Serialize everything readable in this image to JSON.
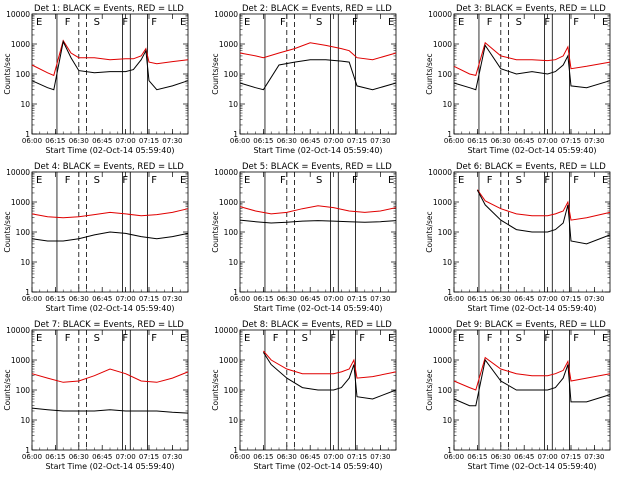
{
  "figure": {
    "xlabel": "Start Time (02-Oct-14 05:59:40)",
    "ylabel": "Counts/sec"
  },
  "chart_data": [
    {
      "type": "line",
      "title": "Det 1: BLACK = Events, RED = LLD",
      "flags": [
        "E",
        "F",
        "S",
        "F",
        "F",
        "E"
      ],
      "xlim": [
        "06:00",
        "07:40"
      ],
      "ylim": [
        1,
        10000
      ],
      "yscale": "log",
      "x_ticks": [
        "06:00",
        "06:15",
        "06:30",
        "06:45",
        "07:00",
        "07:15",
        "07:30"
      ],
      "y_ticks": [
        "1",
        "10",
        "100",
        "1000",
        "10000"
      ],
      "series": [
        {
          "color": "#000000",
          "x": [
            "06:00",
            "06:10",
            "06:14",
            "06:20",
            "06:25",
            "06:30",
            "06:40",
            "06:50",
            "07:00",
            "07:05",
            "07:10",
            "07:13",
            "07:15",
            "07:20",
            "07:30",
            "07:40"
          ],
          "values": [
            60,
            35,
            30,
            1200,
            350,
            130,
            110,
            120,
            120,
            140,
            300,
            600,
            60,
            30,
            40,
            60
          ]
        },
        {
          "color": "#e00000",
          "x": [
            "06:00",
            "06:10",
            "06:14",
            "06:20",
            "06:25",
            "06:30",
            "06:40",
            "06:50",
            "07:00",
            "07:05",
            "07:10",
            "07:13",
            "07:15",
            "07:20",
            "07:30",
            "07:40"
          ],
          "values": [
            200,
            110,
            90,
            1300,
            500,
            350,
            350,
            300,
            320,
            320,
            400,
            700,
            250,
            220,
            260,
            300
          ]
        }
      ]
    },
    {
      "type": "line",
      "title": "Det 2: BLACK = Events, RED = LLD",
      "flags": [
        "E",
        "F",
        "S",
        "F",
        "E"
      ],
      "xlim": [
        "06:00",
        "07:40"
      ],
      "ylim": [
        1,
        10000
      ],
      "yscale": "log",
      "x_ticks": [
        "06:00",
        "06:15",
        "06:30",
        "06:45",
        "07:00",
        "07:15",
        "07:30"
      ],
      "y_ticks": [
        "1",
        "10",
        "100",
        "1000",
        "10000"
      ],
      "series": [
        {
          "color": "#000000",
          "x": [
            "06:00",
            "06:10",
            "06:15",
            "06:25",
            "06:35",
            "06:45",
            "06:55",
            "07:05",
            "07:10",
            "07:15",
            "07:25",
            "07:40"
          ],
          "values": [
            50,
            35,
            30,
            200,
            250,
            300,
            300,
            270,
            250,
            40,
            30,
            50
          ]
        },
        {
          "color": "#e00000",
          "x": [
            "06:00",
            "06:10",
            "06:15",
            "06:25",
            "06:35",
            "06:45",
            "06:55",
            "07:05",
            "07:10",
            "07:15",
            "07:25",
            "07:40"
          ],
          "values": [
            500,
            400,
            350,
            500,
            700,
            1100,
            900,
            700,
            600,
            350,
            300,
            500
          ]
        }
      ]
    },
    {
      "type": "line",
      "title": "Det 3: BLACK = Events, RED = LLD",
      "flags": [
        "E",
        "F",
        "S",
        "F",
        "F",
        "E"
      ],
      "xlim": [
        "06:00",
        "07:40"
      ],
      "ylim": [
        1,
        10000
      ],
      "yscale": "log",
      "x_ticks": [
        "06:00",
        "06:15",
        "06:30",
        "06:45",
        "07:00",
        "07:15",
        "07:30"
      ],
      "y_ticks": [
        "1",
        "10",
        "100",
        "1000",
        "10000"
      ],
      "series": [
        {
          "color": "#000000",
          "x": [
            "06:00",
            "06:10",
            "06:14",
            "06:20",
            "06:30",
            "06:40",
            "06:50",
            "07:00",
            "07:05",
            "07:10",
            "07:13",
            "07:15",
            "07:25",
            "07:40"
          ],
          "values": [
            50,
            35,
            30,
            900,
            150,
            100,
            120,
            100,
            120,
            200,
            400,
            40,
            35,
            60
          ]
        },
        {
          "color": "#e00000",
          "x": [
            "06:00",
            "06:10",
            "06:14",
            "06:20",
            "06:30",
            "06:40",
            "06:50",
            "07:00",
            "07:05",
            "07:10",
            "07:13",
            "07:15",
            "07:25",
            "07:40"
          ],
          "values": [
            180,
            100,
            90,
            1100,
            400,
            300,
            300,
            280,
            300,
            400,
            800,
            150,
            180,
            250
          ]
        }
      ]
    },
    {
      "type": "line",
      "title": "Det 4: BLACK = Events, RED = LLD",
      "flags": [
        "E",
        "F",
        "S",
        "F",
        "F",
        "E"
      ],
      "xlim": [
        "06:00",
        "07:40"
      ],
      "ylim": [
        1,
        10000
      ],
      "yscale": "log",
      "x_ticks": [
        "06:00",
        "06:15",
        "06:30",
        "06:45",
        "07:00",
        "07:15",
        "07:30"
      ],
      "y_ticks": [
        "1",
        "10",
        "100",
        "1000",
        "10000"
      ],
      "series": [
        {
          "color": "#000000",
          "x": [
            "06:00",
            "06:10",
            "06:20",
            "06:30",
            "06:40",
            "06:50",
            "07:00",
            "07:10",
            "07:20",
            "07:30",
            "07:40"
          ],
          "values": [
            60,
            50,
            50,
            60,
            80,
            100,
            90,
            70,
            60,
            70,
            90
          ]
        },
        {
          "color": "#e00000",
          "x": [
            "06:00",
            "06:10",
            "06:20",
            "06:30",
            "06:40",
            "06:50",
            "07:00",
            "07:10",
            "07:20",
            "07:30",
            "07:40"
          ],
          "values": [
            400,
            320,
            300,
            320,
            380,
            450,
            400,
            350,
            380,
            450,
            600
          ]
        }
      ]
    },
    {
      "type": "line",
      "title": "Det 5: BLACK = Events, RED = LLD",
      "flags": [
        "E",
        "F",
        "S",
        "F",
        "E"
      ],
      "xlim": [
        "06:00",
        "07:40"
      ],
      "ylim": [
        1,
        10000
      ],
      "yscale": "log",
      "x_ticks": [
        "06:00",
        "06:15",
        "06:30",
        "06:45",
        "07:00",
        "07:15",
        "07:30"
      ],
      "y_ticks": [
        "1",
        "10",
        "100",
        "1000",
        "10000"
      ],
      "series": [
        {
          "color": "#000000",
          "x": [
            "06:00",
            "06:10",
            "06:20",
            "06:30",
            "06:40",
            "06:50",
            "07:00",
            "07:10",
            "07:20",
            "07:30",
            "07:40"
          ],
          "values": [
            250,
            220,
            200,
            210,
            230,
            240,
            230,
            220,
            210,
            220,
            240
          ]
        },
        {
          "color": "#e00000",
          "x": [
            "06:00",
            "06:10",
            "06:20",
            "06:30",
            "06:40",
            "06:50",
            "07:00",
            "07:10",
            "07:20",
            "07:30",
            "07:40"
          ],
          "values": [
            700,
            500,
            400,
            450,
            600,
            750,
            650,
            500,
            450,
            500,
            650
          ]
        }
      ]
    },
    {
      "type": "line",
      "title": "Det 6: BLACK = Events, RED = LLD",
      "flags": [
        "E",
        "F",
        "S",
        "F",
        "F",
        "E"
      ],
      "xlim": [
        "06:00",
        "07:40"
      ],
      "ylim": [
        1,
        10000
      ],
      "yscale": "log",
      "x_ticks": [
        "06:00",
        "06:15",
        "06:30",
        "06:45",
        "07:00",
        "07:15",
        "07:30"
      ],
      "y_ticks": [
        "1",
        "10",
        "100",
        "1000",
        "10000"
      ],
      "series": [
        {
          "color": "#000000",
          "x": [
            "06:15",
            "06:20",
            "06:30",
            "06:40",
            "06:50",
            "07:00",
            "07:05",
            "07:10",
            "07:13",
            "07:15",
            "07:25",
            "07:40"
          ],
          "values": [
            2500,
            800,
            250,
            120,
            100,
            100,
            120,
            200,
            800,
            50,
            40,
            80
          ]
        },
        {
          "color": "#e00000",
          "x": [
            "06:15",
            "06:20",
            "06:30",
            "06:40",
            "06:50",
            "07:00",
            "07:05",
            "07:10",
            "07:13",
            "07:15",
            "07:25",
            "07:40"
          ],
          "values": [
            2600,
            1100,
            600,
            400,
            350,
            350,
            400,
            500,
            1000,
            250,
            300,
            450
          ]
        }
      ]
    },
    {
      "type": "line",
      "title": "Det 7: BLACK = Events, RED = LLD",
      "flags": [
        "E",
        "F",
        "S",
        "F",
        "F",
        "E"
      ],
      "xlim": [
        "06:00",
        "07:40"
      ],
      "ylim": [
        1,
        10000
      ],
      "yscale": "log",
      "x_ticks": [
        "06:00",
        "06:15",
        "06:30",
        "06:45",
        "07:00",
        "07:15",
        "07:30"
      ],
      "y_ticks": [
        "1",
        "10",
        "100",
        "1000",
        "10000"
      ],
      "series": [
        {
          "color": "#000000",
          "x": [
            "06:00",
            "06:10",
            "06:20",
            "06:30",
            "06:40",
            "06:50",
            "07:00",
            "07:10",
            "07:20",
            "07:30",
            "07:40"
          ],
          "values": [
            25,
            22,
            20,
            20,
            20,
            22,
            20,
            20,
            20,
            18,
            17
          ]
        },
        {
          "color": "#e00000",
          "x": [
            "06:00",
            "06:10",
            "06:20",
            "06:30",
            "06:40",
            "06:50",
            "07:00",
            "07:10",
            "07:20",
            "07:30",
            "07:40"
          ],
          "values": [
            350,
            250,
            180,
            200,
            300,
            500,
            350,
            200,
            180,
            250,
            400
          ]
        }
      ]
    },
    {
      "type": "line",
      "title": "Det 8: BLACK = Events, RED = LLD",
      "flags": [
        "E",
        "F",
        "S",
        "F",
        "F",
        "E"
      ],
      "xlim": [
        "06:00",
        "07:40"
      ],
      "ylim": [
        1,
        10000
      ],
      "yscale": "log",
      "x_ticks": [
        "06:00",
        "06:15",
        "06:30",
        "06:45",
        "07:00",
        "07:15",
        "07:30"
      ],
      "y_ticks": [
        "1",
        "10",
        "100",
        "1000",
        "10000"
      ],
      "series": [
        {
          "color": "#000000",
          "x": [
            "06:15",
            "06:20",
            "06:30",
            "06:40",
            "06:50",
            "07:00",
            "07:05",
            "07:10",
            "07:13",
            "07:15",
            "07:25",
            "07:40"
          ],
          "values": [
            1800,
            700,
            250,
            120,
            100,
            100,
            120,
            250,
            700,
            60,
            50,
            100
          ]
        },
        {
          "color": "#e00000",
          "x": [
            "06:15",
            "06:20",
            "06:30",
            "06:40",
            "06:50",
            "07:00",
            "07:05",
            "07:10",
            "07:13",
            "07:15",
            "07:25",
            "07:40"
          ],
          "values": [
            2000,
            1000,
            500,
            350,
            350,
            350,
            400,
            500,
            1000,
            250,
            280,
            400
          ]
        }
      ]
    },
    {
      "type": "line",
      "title": "Det 9: BLACK = Events, RED = LLD",
      "flags": [
        "E",
        "F",
        "S",
        "F",
        "F",
        "E"
      ],
      "xlim": [
        "06:00",
        "07:40"
      ],
      "ylim": [
        1,
        10000
      ],
      "yscale": "log",
      "x_ticks": [
        "06:00",
        "06:15",
        "06:30",
        "06:45",
        "07:00",
        "07:15",
        "07:30"
      ],
      "y_ticks": [
        "1",
        "10",
        "100",
        "1000",
        "10000"
      ],
      "series": [
        {
          "color": "#000000",
          "x": [
            "06:00",
            "06:10",
            "06:14",
            "06:20",
            "06:30",
            "06:40",
            "06:50",
            "07:00",
            "07:05",
            "07:10",
            "07:13",
            "07:15",
            "07:25",
            "07:40"
          ],
          "values": [
            50,
            30,
            30,
            1000,
            200,
            100,
            100,
            100,
            120,
            250,
            700,
            40,
            40,
            70
          ]
        },
        {
          "color": "#e00000",
          "x": [
            "06:00",
            "06:10",
            "06:14",
            "06:20",
            "06:30",
            "06:40",
            "06:50",
            "07:00",
            "07:05",
            "07:10",
            "07:13",
            "07:15",
            "07:25",
            "07:40"
          ],
          "values": [
            200,
            120,
            100,
            1200,
            500,
            350,
            300,
            300,
            350,
            450,
            900,
            200,
            250,
            350
          ]
        }
      ]
    }
  ]
}
